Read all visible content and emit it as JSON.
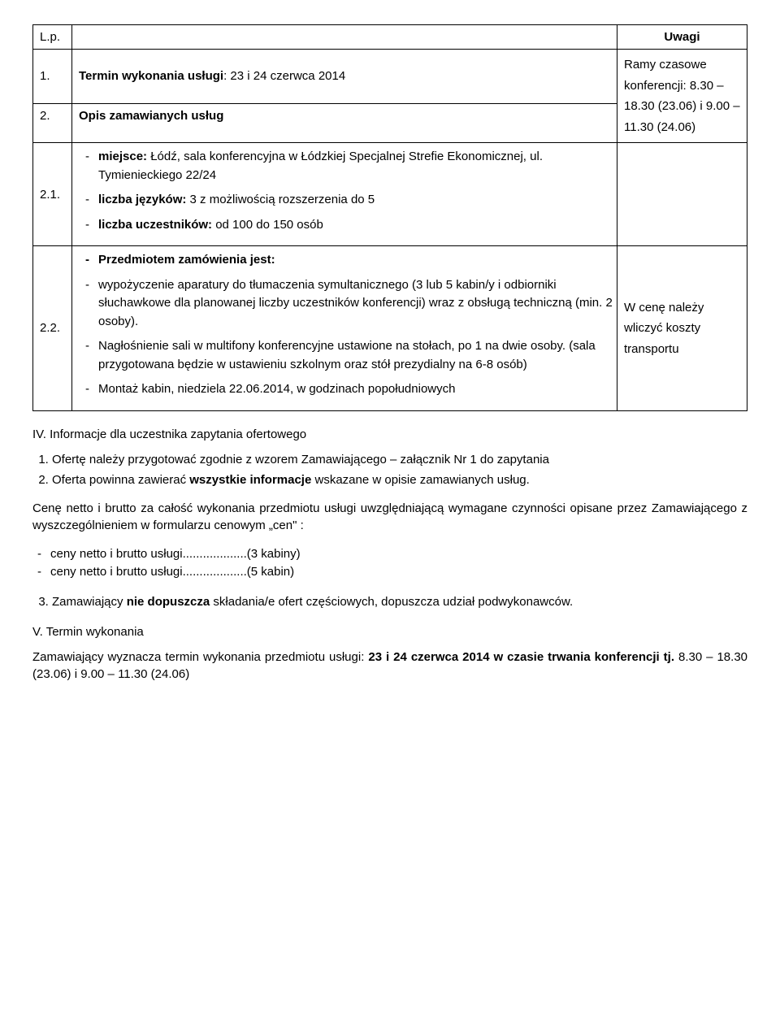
{
  "table": {
    "header": {
      "lp": "L.p.",
      "uwagi": "Uwagi"
    },
    "row1": {
      "lp": "1.",
      "mid_prefix": "Termin wykonania usługi",
      "mid_suffix": ": 23 i 24 czerwca 2014",
      "uwagi_line1": "Ramy czasowe",
      "uwagi_line2": "konferencji: 8.30 –",
      "uwagi_line3": "18.30 (23.06) i 9.00 –",
      "uwagi_line4": "11.30 (24.06)"
    },
    "row2": {
      "lp": "2.",
      "mid": "Opis zamawianych usług"
    },
    "row21": {
      "lp": "2.1.",
      "item1_prefix": "miejsce: ",
      "item1_rest": "Łódź, sala konferencyjna w Łódzkiej Specjalnej Strefie Ekonomicznej, ul. Tymienieckiego 22/24",
      "item2_prefix": "liczba języków: ",
      "item2_rest": "3 z możliwością rozszerzenia do 5",
      "item3_prefix": "liczba uczestników: ",
      "item3_rest": "od 100 do 150 osób"
    },
    "row22": {
      "lp": "2.2.",
      "item1": "Przedmiotem zamówienia jest:",
      "item2": "wypożyczenie aparatury do tłumaczenia symultanicznego (3 lub 5 kabin/y i odbiorniki słuchawkowe dla planowanej liczby uczestników konferencji) wraz z obsługą techniczną (min. 2 osoby).",
      "item3": "Nagłośnienie sali w multifony konferencyjne ustawione na stołach, po 1 na dwie osoby. (sala przygotowana będzie w ustawieniu szkolnym oraz stół prezydialny na 6-8 osób)",
      "item4": "Montaż kabin, niedziela 22.06.2014, w godzinach popołudniowych",
      "uwagi_line1": "W cenę należy",
      "uwagi_line2": "wliczyć koszty",
      "uwagi_line3": "transportu"
    }
  },
  "section4": {
    "title": "IV. Informacje dla uczestnika zapytania ofertowego",
    "list_item1": "Ofertę należy przygotować zgodnie z wzorem Zamawiającego – załącznik Nr 1 do zapytania",
    "list_item2_a": "Oferta powinna zawierać ",
    "list_item2_b": "wszystkie informacje",
    "list_item2_c": " wskazane w opisie zamawianych usług.",
    "para1": "Cenę netto i brutto za całość wykonania przedmiotu usługi uwzględniającą wymagane czynności opisane przez Zamawiającego z wyszczególnieniem w formularzu cenowym „cen\" :",
    "price1": "ceny netto i brutto usługi...................(3 kabiny)",
    "price2": "ceny netto i brutto usługi...................(5 kabin)",
    "list_item3_a": "Zamawiający ",
    "list_item3_b": "nie dopuszcza",
    "list_item3_c": " składania/e ofert częściowych, dopuszcza udział podwykonawców."
  },
  "section5": {
    "title": "V. Termin wykonania",
    "para_a": "Zamawiający wyznacza termin wykonania przedmiotu usługi: ",
    "para_b": "23 i 24 czerwca 2014 w czasie trwania konferencji tj.",
    "para_c": " 8.30 – 18.30 (23.06) i 9.00 – 11.30 (24.06)"
  }
}
